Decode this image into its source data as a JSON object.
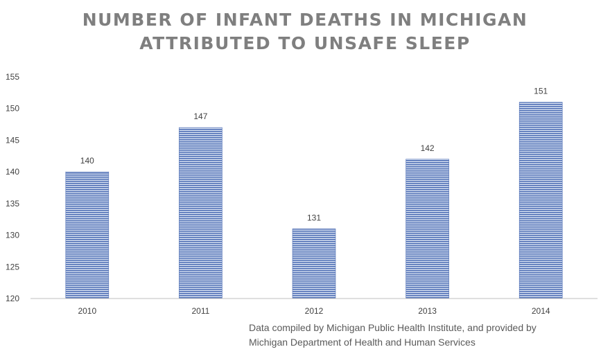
{
  "chart_data": {
    "type": "bar",
    "title_lines": [
      "NUMBER OF INFANT DEATHS IN MICHIGAN",
      "ATTRIBUTED TO UNSAFE SLEEP"
    ],
    "categories": [
      "2010",
      "2011",
      "2012",
      "2013",
      "2014"
    ],
    "values": [
      140,
      147,
      131,
      142,
      151
    ],
    "data_labels": [
      "140",
      "147",
      "131",
      "142",
      "151"
    ],
    "ylim": [
      120,
      155
    ],
    "yticks": [
      "120",
      "125",
      "130",
      "135",
      "140",
      "145",
      "150",
      "155"
    ],
    "grid": false,
    "legend": "none",
    "bar_color": "#4f6fb5"
  },
  "source_lines": [
    "Data compiled by Michigan Public Health Institute, and provided by",
    "Michigan Department of Health and Human Services"
  ]
}
